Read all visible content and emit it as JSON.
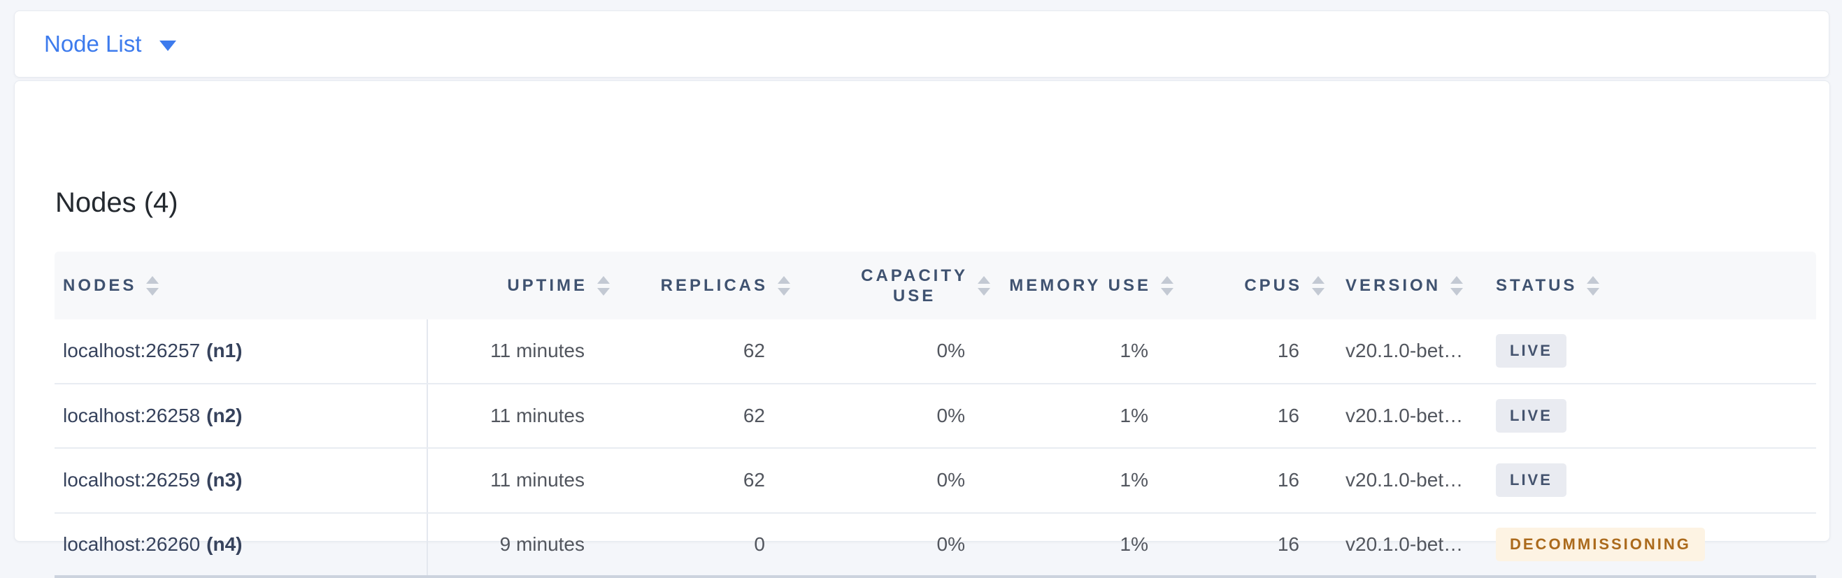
{
  "topbar": {
    "dropdown_label": "Node List"
  },
  "main": {
    "title": "Nodes (4)",
    "table": {
      "columns": [
        {
          "label": "NODES",
          "align": "left",
          "sortable": true
        },
        {
          "label": "UPTIME",
          "align": "right",
          "sortable": true
        },
        {
          "label": "REPLICAS",
          "align": "right",
          "sortable": true
        },
        {
          "label": "CAPACITY USE",
          "line1": "CAPACITY",
          "line2": "USE",
          "align": "right",
          "sortable": true
        },
        {
          "label": "MEMORY USE",
          "align": "right",
          "sortable": true
        },
        {
          "label": "CPUS",
          "align": "right",
          "sortable": true
        },
        {
          "label": "VERSION",
          "align": "left",
          "sortable": true
        },
        {
          "label": "STATUS",
          "align": "left",
          "sortable": true
        }
      ],
      "rows": [
        {
          "address": "localhost:26257",
          "id": "(n1)",
          "uptime": "11 minutes",
          "replicas": "62",
          "capacity_use": "0%",
          "memory_use": "1%",
          "cpus": "16",
          "version": "v20.1.0-bet…",
          "status": "LIVE"
        },
        {
          "address": "localhost:26258",
          "id": "(n2)",
          "uptime": "11 minutes",
          "replicas": "62",
          "capacity_use": "0%",
          "memory_use": "1%",
          "cpus": "16",
          "version": "v20.1.0-bet…",
          "status": "LIVE"
        },
        {
          "address": "localhost:26259",
          "id": "(n3)",
          "uptime": "11 minutes",
          "replicas": "62",
          "capacity_use": "0%",
          "memory_use": "1%",
          "cpus": "16",
          "version": "v20.1.0-bet…",
          "status": "LIVE"
        },
        {
          "address": "localhost:26260",
          "id": "(n4)",
          "uptime": "9 minutes",
          "replicas": "0",
          "capacity_use": "0%",
          "memory_use": "1%",
          "cpus": "16",
          "version": "v20.1.0-bet…",
          "status": "DECOMMISSIONING"
        }
      ]
    }
  },
  "colors": {
    "accent_blue": "#3d7bed",
    "header_text": "#3f5270",
    "live_badge_bg": "#e9ebf1",
    "live_badge_text": "#44536e",
    "decommissioning_badge_bg": "#fdf3e3",
    "decommissioning_badge_text": "#ab6a1c"
  }
}
